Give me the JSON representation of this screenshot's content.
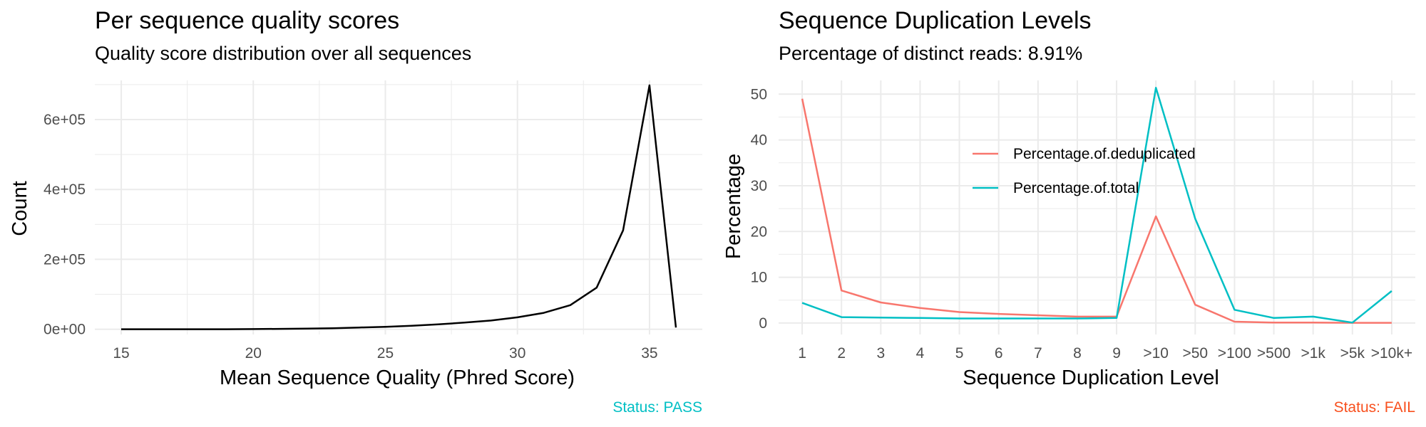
{
  "colors": {
    "pass": "#00BFC4",
    "fail": "#F8501E",
    "series_a": "#F8766D",
    "series_b": "#00BFC4",
    "line": "#000000",
    "grid": "#EBEBEB"
  },
  "chart_data": [
    {
      "type": "line",
      "title": "Per sequence quality scores",
      "subtitle": "Quality score distribution over all sequences",
      "xlabel": "Mean Sequence Quality (Phred Score)",
      "ylabel": "Count",
      "status": "Status: PASS",
      "xlim": [
        14,
        37
      ],
      "ylim": [
        -15000,
        712000
      ],
      "xticks": [
        15,
        20,
        25,
        30,
        35
      ],
      "xtick_labels": [
        "15",
        "20",
        "25",
        "30",
        "35"
      ],
      "yticks": [
        0,
        200000,
        400000,
        600000
      ],
      "ytick_labels": [
        "0e+00",
        "2e+05",
        "4e+05",
        "6e+05"
      ],
      "grid": true,
      "series": [
        {
          "x": [
            15,
            16,
            17,
            18,
            19,
            20,
            21,
            22,
            23,
            24,
            25,
            26,
            27,
            28,
            29,
            30,
            31,
            32,
            33,
            34,
            35,
            36
          ],
          "y": [
            0,
            0,
            0,
            0,
            0,
            500,
            1000,
            2000,
            3000,
            5000,
            7000,
            10000,
            14000,
            19000,
            25000,
            34000,
            47000,
            69000,
            119000,
            283000,
            698000,
            5000
          ]
        }
      ]
    },
    {
      "type": "line",
      "title": "Sequence Duplication Levels",
      "subtitle": "Percentage of distinct reads: 8.91%",
      "xlabel": "Sequence Duplication Level",
      "ylabel": "Percentage",
      "status": "Status: FAIL",
      "categories": [
        "1",
        "2",
        "3",
        "4",
        "5",
        "6",
        "7",
        "8",
        "9",
        ">10",
        ">50",
        ">100",
        ">500",
        ">1k",
        ">5k",
        ">10k+"
      ],
      "ylim": [
        -2.5,
        53
      ],
      "yticks": [
        0,
        10,
        20,
        30,
        40,
        50
      ],
      "ytick_labels": [
        "0",
        "10",
        "20",
        "30",
        "40",
        "50"
      ],
      "grid": true,
      "legend": "inside-top",
      "series": [
        {
          "name": "Percentage.of.deduplicated",
          "values": [
            49,
            7.1,
            4.5,
            3.3,
            2.4,
            2.0,
            1.7,
            1.4,
            1.4,
            23.3,
            4.0,
            0.3,
            0.1,
            0.1,
            0.05,
            0.05
          ]
        },
        {
          "name": "Percentage.of.total",
          "values": [
            4.4,
            1.3,
            1.2,
            1.1,
            1.0,
            1.0,
            1.0,
            1.0,
            1.1,
            51.4,
            22.8,
            2.9,
            1.1,
            1.4,
            0.1,
            7.0
          ]
        }
      ]
    }
  ]
}
